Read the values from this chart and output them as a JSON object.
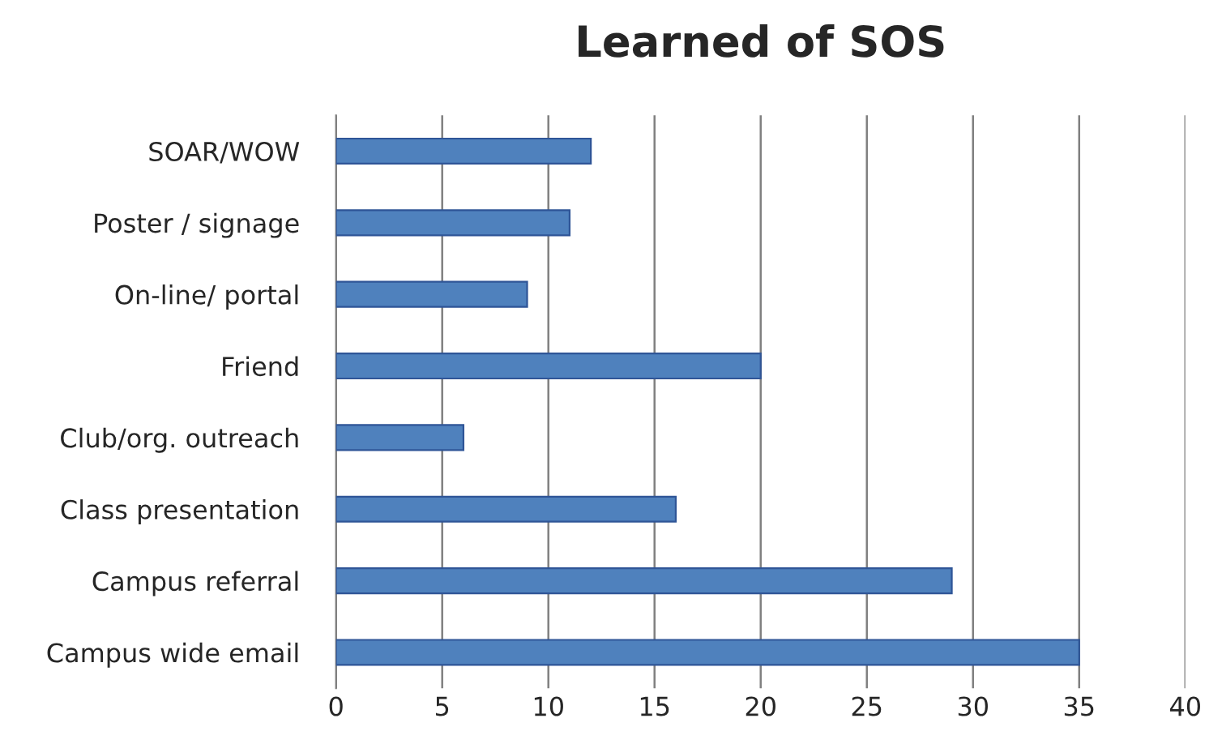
{
  "chart_data": {
    "type": "bar",
    "orientation": "horizontal",
    "title": "Learned of SOS",
    "categories": [
      "SOAR/WOW",
      "Poster / signage",
      "On-line/ portal",
      "Friend",
      "Club/org. outreach",
      "Class presentation",
      "Campus referral",
      "Campus wide email"
    ],
    "values": [
      12,
      11,
      9,
      20,
      6,
      16,
      29,
      35
    ],
    "color": "#4f81bd",
    "xlim": [
      0,
      40
    ],
    "xticks": [
      0,
      5,
      10,
      15,
      20,
      25,
      30,
      35,
      40
    ],
    "grid": "x"
  }
}
